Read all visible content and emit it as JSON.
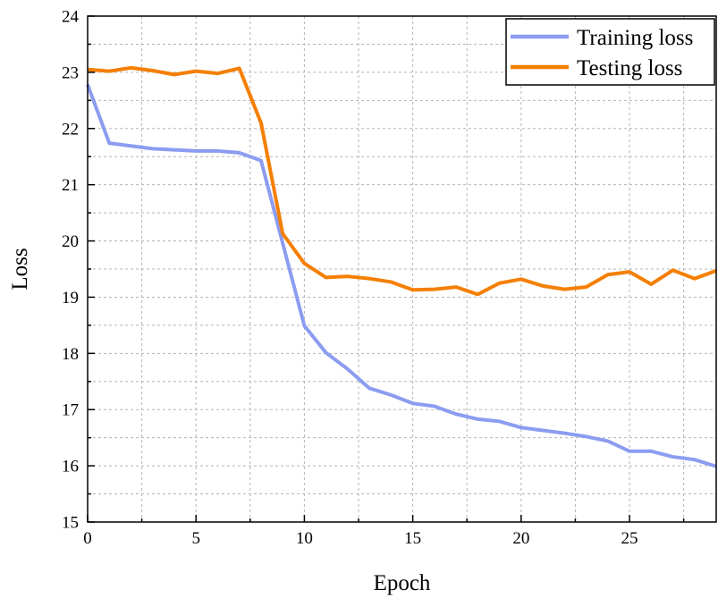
{
  "chart_data": {
    "type": "line",
    "title": "",
    "xlabel": "Epoch",
    "ylabel": "Loss",
    "xlim": [
      0,
      29
    ],
    "ylim": [
      15,
      24
    ],
    "x_ticks": [
      0,
      5,
      10,
      15,
      20,
      25
    ],
    "y_ticks": [
      15,
      16,
      17,
      18,
      19,
      20,
      21,
      22,
      23,
      24
    ],
    "grid": true,
    "legend_position": "top-right",
    "x": [
      0,
      1,
      2,
      3,
      4,
      5,
      6,
      7,
      8,
      9,
      10,
      11,
      12,
      13,
      14,
      15,
      16,
      17,
      18,
      19,
      20,
      21,
      22,
      23,
      24,
      25,
      26,
      27,
      28,
      29
    ],
    "series": [
      {
        "name": "Training loss",
        "color": "#8c9cf0",
        "values": [
          22.78,
          21.74,
          21.69,
          21.64,
          21.62,
          21.6,
          21.6,
          21.57,
          21.43,
          19.96,
          18.49,
          18.01,
          17.72,
          17.38,
          17.26,
          17.11,
          17.06,
          16.92,
          16.83,
          16.79,
          16.68,
          16.63,
          16.58,
          16.52,
          16.44,
          16.26,
          16.26,
          16.16,
          16.11,
          15.99
        ]
      },
      {
        "name": "Testing loss",
        "color": "#f57f00",
        "values": [
          23.05,
          23.02,
          23.08,
          23.03,
          22.96,
          23.02,
          22.98,
          23.07,
          22.1,
          20.13,
          19.6,
          19.35,
          19.37,
          19.33,
          19.27,
          19.13,
          19.14,
          19.18,
          19.05,
          19.25,
          19.32,
          19.2,
          19.14,
          19.18,
          19.4,
          19.45,
          19.23,
          19.48,
          19.33,
          19.47
        ]
      }
    ]
  }
}
